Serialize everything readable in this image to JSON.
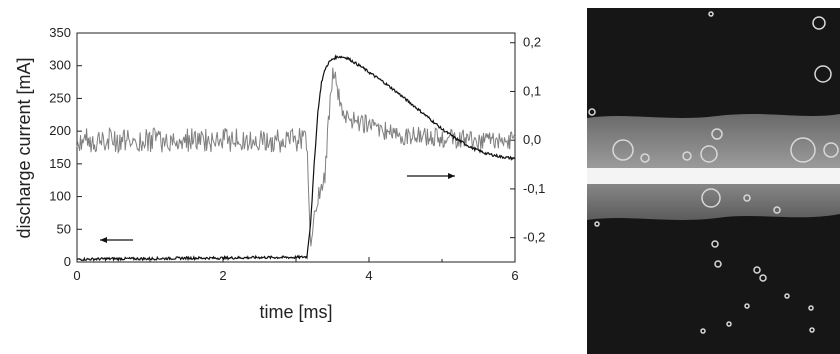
{
  "chart_data": {
    "type": "line",
    "title": "",
    "xlabel": "time [ms]",
    "ylabel": "discharge current [mA]",
    "xlim": [
      0,
      6
    ],
    "ylim": [
      0,
      350
    ],
    "y2lim": [
      -0.25,
      0.22
    ],
    "x_ticks": [
      "0",
      "2",
      "4",
      "6"
    ],
    "y_ticks": [
      "0",
      "50",
      "100",
      "150",
      "200",
      "250",
      "300",
      "350"
    ],
    "y2_ticks": [
      "-0,2",
      "-0,1",
      "0,0",
      "0,1",
      "0,2"
    ],
    "grid": false,
    "legend": "arrows indicate axis: left arrow → discharge current (left axis), right arrow → right axis",
    "series": [
      {
        "axis": "left",
        "color": "#111111",
        "x": [
          0,
          0.5,
          1.0,
          1.5,
          2.0,
          2.5,
          3.0,
          3.15,
          3.2,
          3.25,
          3.3,
          3.35,
          3.4,
          3.45,
          3.5,
          3.55,
          3.6,
          3.65,
          3.7,
          3.8,
          3.9,
          4.0,
          4.2,
          4.4,
          4.6,
          4.8,
          5.0,
          5.2,
          5.4,
          5.6,
          5.8,
          6.0
        ],
        "values": [
          4,
          5,
          5,
          6,
          6,
          7,
          7,
          8,
          60,
          150,
          230,
          275,
          295,
          305,
          310,
          313,
          314,
          313,
          312,
          305,
          298,
          290,
          275,
          258,
          240,
          222,
          203,
          188,
          175,
          166,
          161,
          158
        ]
      },
      {
        "axis": "right",
        "color": "#808080",
        "x": [
          0,
          0.5,
          1.0,
          1.5,
          2.0,
          2.5,
          3.0,
          3.1,
          3.15,
          3.2,
          3.25,
          3.3,
          3.35,
          3.4,
          3.45,
          3.5,
          3.55,
          3.6,
          3.65,
          3.7,
          3.8,
          4.0,
          4.2,
          4.5,
          5.0,
          5.5,
          6.0
        ],
        "values": [
          0.0,
          0.0,
          0.0,
          0.0,
          0.0,
          0.0,
          0.0,
          0.0,
          0.0,
          -0.22,
          -0.15,
          -0.12,
          -0.1,
          -0.07,
          0.05,
          0.13,
          0.12,
          0.08,
          0.06,
          0.05,
          0.04,
          0.03,
          0.02,
          0.01,
          0.005,
          0.0,
          0.0
        ]
      }
    ]
  },
  "photo": {
    "description": "photograph of a luminous horizontal discharge channel in liquid with bubbles"
  }
}
